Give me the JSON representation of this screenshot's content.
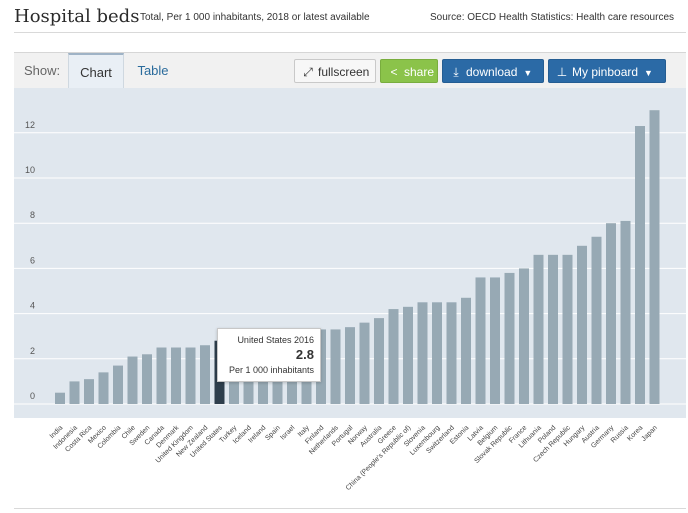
{
  "header": {
    "title": "Hospital beds",
    "subtitle": "Total, Per 1 000 inhabitants, 2018 or latest available",
    "source": "Source: OECD Health Statistics: Health care resources"
  },
  "toolbar": {
    "show_label": "Show:",
    "tabs": [
      "Chart",
      "Table"
    ],
    "fullscreen_label": "fullscreen",
    "share_label": "share",
    "download_label": "download",
    "pinboard_label": "My pinboard"
  },
  "tooltip": {
    "title": "United States 2016",
    "value": "2.8",
    "unit": "Per 1 000 inhabitants"
  },
  "colors": {
    "bar": "#97a9b4",
    "highlight": "#2e3e4c",
    "plot_bg": "#e0e7ee",
    "share": "#8bc34a",
    "primary_button": "#2b6aa6"
  },
  "chart_data": {
    "type": "bar",
    "categories": [
      "India",
      "Indonesia",
      "Costa Rica",
      "Mexico",
      "Colombia",
      "Chile",
      "Sweden",
      "Canada",
      "Denmark",
      "United Kingdom",
      "New Zealand",
      "United States",
      "Turkey",
      "Iceland",
      "Ireland",
      "Spain",
      "Israel",
      "Italy",
      "Finland",
      "Netherlands",
      "Portugal",
      "Norway",
      "Australia",
      "Greece",
      "China (People's Republic of)",
      "Slovenia",
      "Luxembourg",
      "Switzerland",
      "Estonia",
      "Latvia",
      "Belgium",
      "Slovak Republic",
      "France",
      "Lithuania",
      "Poland",
      "Czech Republic",
      "Hungary",
      "Austria",
      "Germany",
      "Russia",
      "Korea",
      "Japan"
    ],
    "values": [
      0.5,
      1.0,
      1.1,
      1.4,
      1.7,
      2.1,
      2.2,
      2.5,
      2.5,
      2.5,
      2.6,
      2.8,
      2.8,
      2.8,
      2.9,
      3.0,
      3.0,
      3.1,
      3.3,
      3.3,
      3.4,
      3.6,
      3.8,
      4.2,
      4.3,
      4.5,
      4.5,
      4.5,
      4.7,
      5.6,
      5.6,
      5.8,
      6.0,
      6.6,
      6.6,
      6.6,
      7.0,
      7.4,
      8.0,
      8.1,
      12.3,
      13.0
    ],
    "highlight": "United States",
    "yticks": [
      0,
      2,
      4,
      6,
      8,
      10,
      12
    ],
    "ylim": [
      0,
      13.2
    ],
    "grid": true
  }
}
